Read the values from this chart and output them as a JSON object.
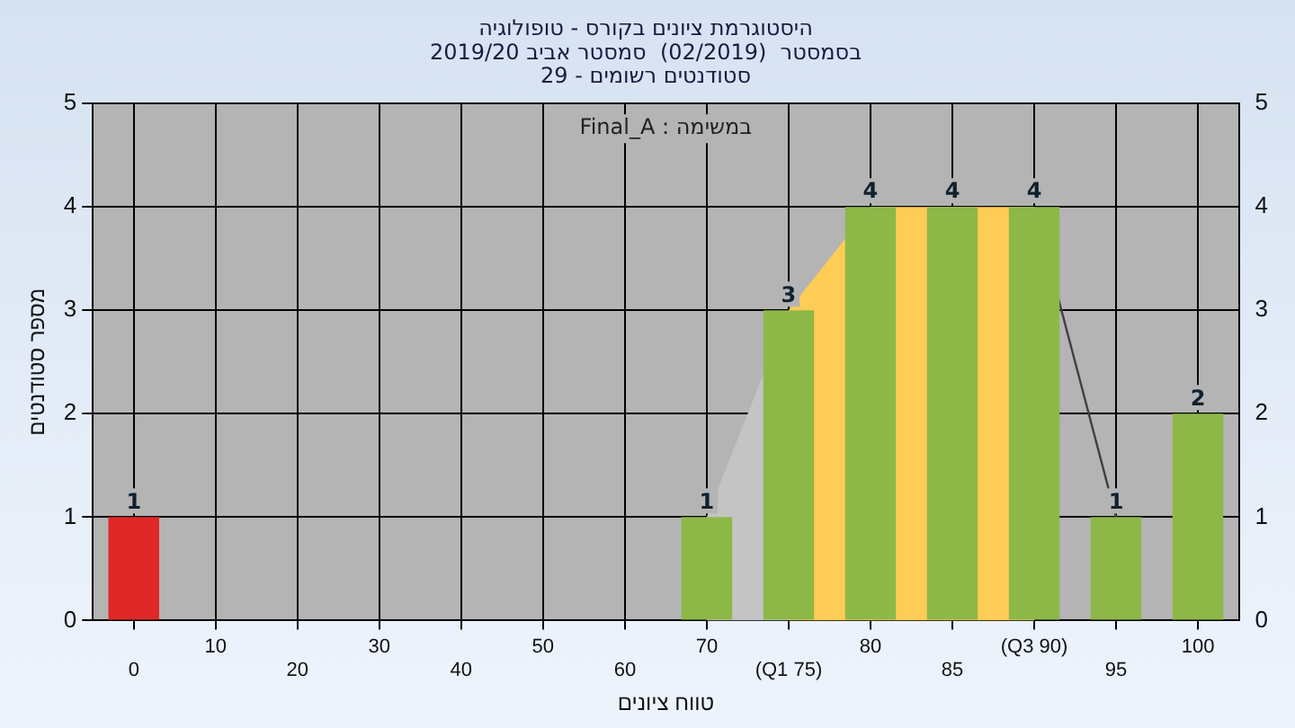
{
  "chart_data": {
    "type": "bar",
    "title": "היסטוגרמת ציונים בקורס - טופולוגיה",
    "subtitle": "בסמסטר  (02/2019)  סמסטר אביב 2019/20\nסטודנטים רשומים - 29",
    "xlabel": "טווח ציונים",
    "ylabel": "מספר סטודנטים",
    "annotations": [
      "Final_A : במשימה"
    ],
    "categories": [
      "0",
      "10",
      "20",
      "30",
      "40",
      "50",
      "60",
      "70",
      "(Q1 75)",
      "80",
      "85",
      "(Q3 90)",
      "95",
      "100"
    ],
    "series": [
      {
        "values": [
          1,
          0,
          0,
          0,
          0,
          0,
          0,
          1,
          3,
          4,
          4,
          4,
          1,
          2
        ],
        "value_labels": [
          "1",
          null,
          null,
          null,
          null,
          null,
          null,
          "1",
          "3",
          "4",
          "4",
          "4",
          "1",
          "2"
        ],
        "colors": [
          "#e02828",
          "#8db848",
          "#8db848",
          "#8db848",
          "#8db848",
          "#8db848",
          "#8db848",
          "#8db848",
          "#8db848",
          "#8db848",
          "#8db848",
          "#8db848",
          "#8db848",
          "#8db848"
        ]
      },
      {
        "type": "area",
        "color": "#ffcc55",
        "values": [
          null,
          null,
          null,
          null,
          null,
          null,
          null,
          null,
          3,
          4,
          4,
          4,
          null,
          null
        ]
      },
      {
        "type": "area",
        "color": "#c4c4c4",
        "values": [
          null,
          null,
          null,
          null,
          null,
          null,
          null,
          1,
          3,
          null,
          null,
          null,
          null,
          null
        ]
      },
      {
        "type": "line",
        "color": "#404040",
        "values": [
          null,
          null,
          null,
          null,
          null,
          null,
          null,
          null,
          null,
          null,
          null,
          4,
          1,
          null
        ]
      }
    ],
    "ylim": [
      0,
      5
    ],
    "yticks": [
      0,
      1,
      2,
      3,
      4,
      5
    ],
    "y2lim": [
      0,
      5
    ],
    "y2ticks": [
      0,
      1,
      2,
      3,
      4,
      5
    ],
    "grid": true,
    "legend": false
  }
}
